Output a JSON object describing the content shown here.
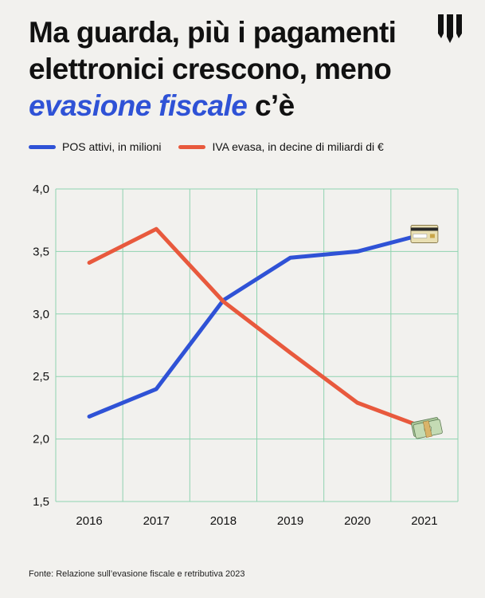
{
  "title": {
    "line1": "Ma guarda, più i pagamenti",
    "line2": "elettronici crescono, meno",
    "highlight": "evasione fiscale",
    "tail": "c’è"
  },
  "source": "Fonte: Relazione sull’evasione fiscale e retributiva 2023",
  "colors": {
    "background": "#f2f1ee",
    "grid": "#8fd3b0",
    "pos": "#2f52d6",
    "iva": "#e8593d"
  },
  "icons": [
    "brand-logo-icon",
    "credit-card-icon",
    "money-bundle-icon"
  ],
  "chart_data": {
    "type": "line",
    "x": [
      "2016",
      "2017",
      "2018",
      "2019",
      "2020",
      "2021"
    ],
    "ylim": [
      1.5,
      4.0
    ],
    "yticks": [
      "1,5",
      "2,0",
      "2,5",
      "3,0",
      "3,5",
      "4,0"
    ],
    "grid": true,
    "legend_position": "top",
    "series": [
      {
        "name": "POS attivi, in milioni",
        "color": "#2f52d6",
        "values": [
          2.18,
          2.4,
          3.11,
          3.45,
          3.5,
          3.64
        ]
      },
      {
        "name": "IVA evasa, in decine di miliardi di €",
        "color": "#e8593d",
        "values": [
          3.41,
          3.68,
          3.1,
          2.69,
          2.29,
          2.09
        ]
      }
    ]
  }
}
